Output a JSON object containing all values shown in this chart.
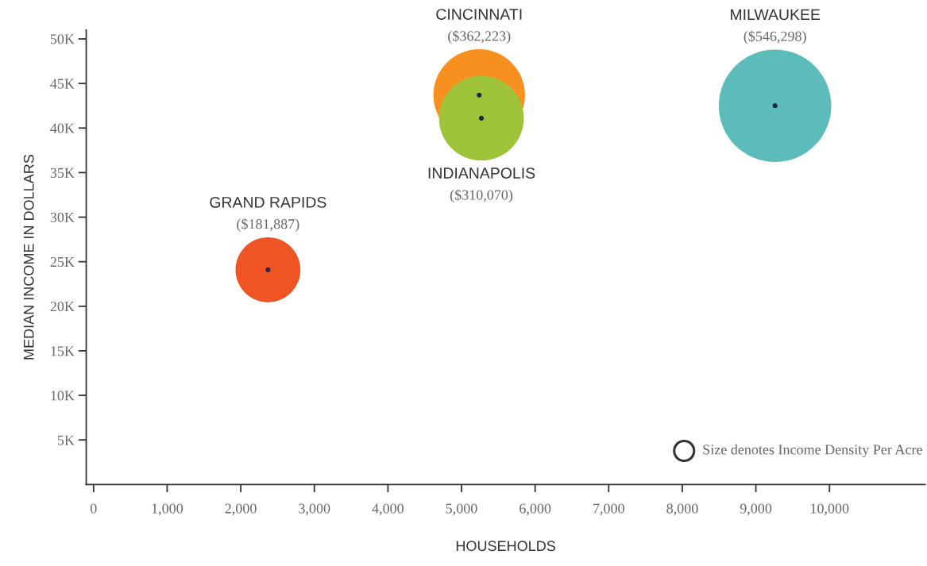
{
  "chart_data": {
    "type": "bubble",
    "xlabel": "HOUSEHOLDS",
    "ylabel": "MEDIAN INCOME IN DOLLARS",
    "series": [
      {
        "name": "GRAND RAPIDS",
        "color": "#f05423",
        "x": [
          2370
        ],
        "values": [
          24100
        ],
        "sizes": [
          0.333
        ]
      },
      {
        "name": "CINCINNATI",
        "color": "#f7901e",
        "x": [
          5240
        ],
        "values": [
          43700
        ],
        "sizes": [
          0.663
        ]
      },
      {
        "name": "INDIANAPOLIS",
        "color": "#9fc43a",
        "x": [
          5270
        ],
        "values": [
          41100
        ],
        "sizes": [
          0.568
        ]
      },
      {
        "name": "MILWAUKEE",
        "color": "#5bbcba",
        "x": [
          9260
        ],
        "values": [
          42500
        ],
        "sizes": [
          1
        ]
      }
    ],
    "annotations": [
      "($181,887)",
      "($362,223)",
      "($310,070)",
      "($546,298)",
      "Size denotes Income Density Per Acre"
    ],
    "xlim": [
      -100,
      11300
    ],
    "ylim": [
      0,
      51000
    ],
    "xticks": [
      {
        "value": 0,
        "label": "0"
      },
      {
        "value": 1000,
        "label": "1,000"
      },
      {
        "value": 2000,
        "label": "2,000"
      },
      {
        "value": 3000,
        "label": "3,000"
      },
      {
        "value": 4000,
        "label": "4,000"
      },
      {
        "value": 5000,
        "label": "5,000"
      },
      {
        "value": 6000,
        "label": "6,000"
      },
      {
        "value": 7000,
        "label": "7,000"
      },
      {
        "value": 8000,
        "label": "8,000"
      },
      {
        "value": 9000,
        "label": "9,000"
      },
      {
        "value": 10000,
        "label": "10,000"
      }
    ],
    "yticks": [
      {
        "value": 5000,
        "label": "5K"
      },
      {
        "value": 10000,
        "label": "10K"
      },
      {
        "value": 15000,
        "label": "15K"
      },
      {
        "value": 20000,
        "label": "20K"
      },
      {
        "value": 25000,
        "label": "25K"
      },
      {
        "value": 30000,
        "label": "30K"
      },
      {
        "value": 35000,
        "label": "35K"
      },
      {
        "value": 40000,
        "label": "40K"
      },
      {
        "value": 45000,
        "label": "45K"
      },
      {
        "value": 50000,
        "label": "50K"
      }
    ],
    "grid": false,
    "legend": false,
    "marker": "circle"
  }
}
